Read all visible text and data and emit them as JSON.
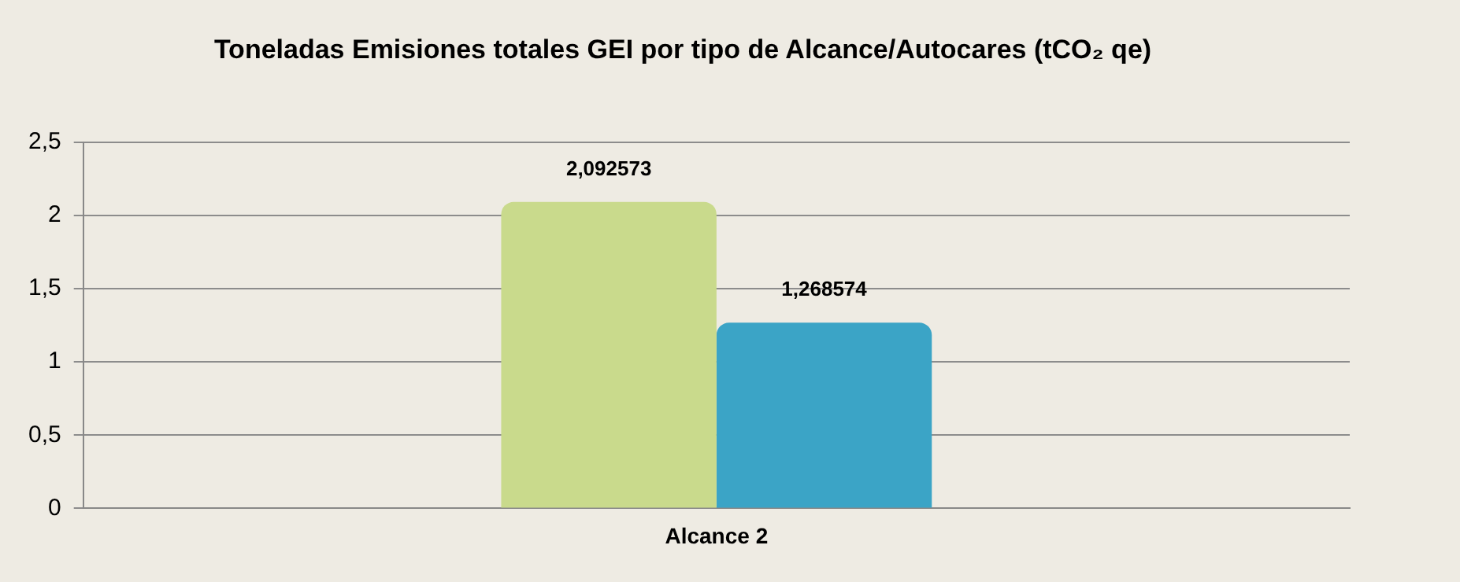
{
  "chart_data": {
    "type": "bar",
    "title": "Toneladas Emisiones totales GEI por tipo de Alcance/Autocares (tCO₂ qe)",
    "categories": [
      "Alcance 2"
    ],
    "series": [
      {
        "color": "#c9da8c",
        "values": [
          2.092573
        ],
        "value_labels": [
          "2,092573"
        ]
      },
      {
        "color": "#3ba4c6",
        "values": [
          1.268574
        ],
        "value_labels": [
          "1,268574"
        ]
      }
    ],
    "ylim": [
      0,
      2.5
    ],
    "yticks": [
      0,
      {
        "value": 0.5,
        "label": "0,5"
      },
      1,
      {
        "value": 1.5,
        "label": "1,5"
      },
      2,
      {
        "value": 2.5,
        "label": "2,5"
      }
    ],
    "grid": "y",
    "legend": false
  }
}
